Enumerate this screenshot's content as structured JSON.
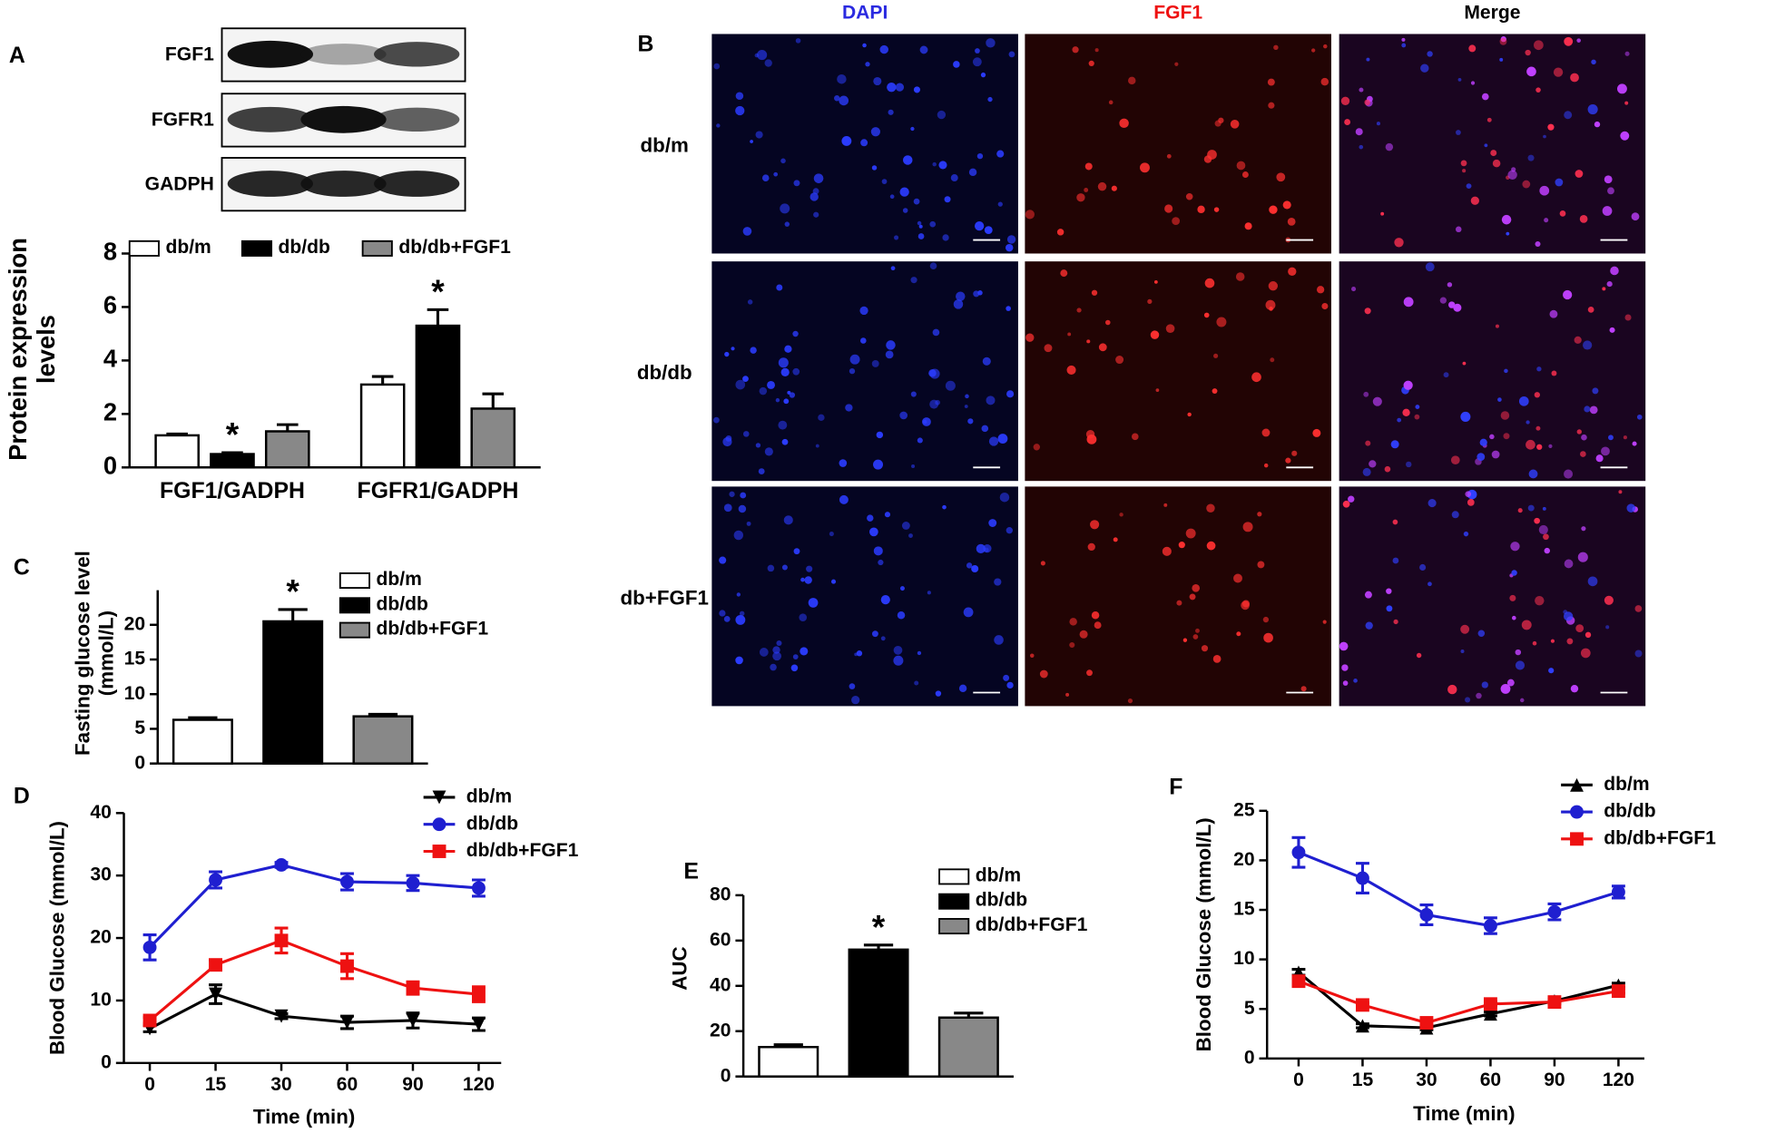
{
  "blot": {
    "panel": "A",
    "labels": [
      "FGF1",
      "FGFR1",
      "GADPH"
    ]
  },
  "micrograph": {
    "panel": "B",
    "columns": [
      "DAPI",
      "FGF1",
      "Merge"
    ],
    "rows": [
      "db/m",
      "db/db",
      "db+FGF1"
    ]
  },
  "chart_data": [
    {
      "type": "bar",
      "panel": "A",
      "ylabel": [
        "Protein expression",
        "levels"
      ],
      "categories": [
        "FGF1/GADPH",
        "FGFR1/GADPH"
      ],
      "series": [
        {
          "name": "db/m",
          "color": "#ffffff",
          "values": [
            1.2,
            3.1
          ],
          "errors": [
            0.05,
            0.3
          ]
        },
        {
          "name": "db/db",
          "color": "#000000",
          "values": [
            0.5,
            5.3
          ],
          "errors": [
            0.05,
            0.6
          ]
        },
        {
          "name": "db/db+FGF1",
          "color": "#888888",
          "values": [
            1.35,
            2.2
          ],
          "errors": [
            0.25,
            0.55
          ]
        }
      ],
      "annotations": [
        {
          "text": "*",
          "series": 1,
          "index": 0
        },
        {
          "text": "*",
          "series": 1,
          "index": 1
        }
      ],
      "ylim": [
        0,
        8
      ],
      "yticks": [
        0,
        2,
        4,
        6,
        8
      ]
    },
    {
      "type": "bar",
      "panel": "C",
      "ylabel": [
        "Fasting glucose level",
        "(mmol/L)"
      ],
      "series": [
        {
          "name": "db/m",
          "color": "#ffffff",
          "values": [
            6.3
          ],
          "errors": [
            0.3
          ]
        },
        {
          "name": "db/db",
          "color": "#000000",
          "values": [
            20.5
          ],
          "errors": [
            1.7
          ]
        },
        {
          "name": "db/db+FGF1",
          "color": "#888888",
          "values": [
            6.8
          ],
          "errors": [
            0.3
          ]
        }
      ],
      "annotations": [
        {
          "text": "*",
          "series": 1,
          "index": 0
        }
      ],
      "ylim": [
        0,
        25
      ],
      "yticks": [
        0,
        5,
        10,
        15,
        20
      ]
    },
    {
      "type": "line",
      "panel": "D",
      "ylabel": [
        "Blood Glucose (mmol/L)"
      ],
      "xlabel": "Time (min)",
      "categories": [
        "0",
        "15",
        "30",
        "60",
        "90",
        "120"
      ],
      "series": [
        {
          "name": "db/m",
          "color": "#000000",
          "marker": "triangle-down",
          "values": [
            5.5,
            11,
            7.5,
            6.5,
            6.8,
            6.2
          ],
          "errors": [
            0.5,
            1.5,
            0.4,
            1,
            1.2,
            1
          ]
        },
        {
          "name": "db/db",
          "color": "#1f1fd0",
          "marker": "circle",
          "values": [
            18.5,
            29.3,
            31.7,
            29,
            28.8,
            28
          ],
          "errors": [
            2,
            1.3,
            0.4,
            1.3,
            1.2,
            1.3
          ]
        },
        {
          "name": "db/db+FGF1",
          "color": "#ee1111",
          "marker": "square",
          "values": [
            6.8,
            15.7,
            19.6,
            15.5,
            12,
            11
          ],
          "errors": [
            0.5,
            0.8,
            2,
            2,
            1,
            1.2
          ]
        }
      ],
      "ylim": [
        0,
        40
      ],
      "yticks": [
        0,
        10,
        20,
        30,
        40
      ]
    },
    {
      "type": "bar",
      "panel": "E",
      "ylabel": [
        "AUC"
      ],
      "series": [
        {
          "name": "db/m",
          "color": "#ffffff",
          "values": [
            13
          ],
          "errors": [
            1
          ]
        },
        {
          "name": "db/db",
          "color": "#000000",
          "values": [
            56
          ],
          "errors": [
            2
          ]
        },
        {
          "name": "db/db+FGF1",
          "color": "#888888",
          "values": [
            26
          ],
          "errors": [
            2
          ]
        }
      ],
      "annotations": [
        {
          "text": "*",
          "series": 1,
          "index": 0
        }
      ],
      "ylim": [
        0,
        80
      ],
      "yticks": [
        0,
        20,
        40,
        60,
        80
      ]
    },
    {
      "type": "line",
      "panel": "F",
      "ylabel": [
        "Blood Glucose (mmol/L)"
      ],
      "xlabel": "Time (min)",
      "categories": [
        "0",
        "15",
        "30",
        "60",
        "90",
        "120"
      ],
      "series": [
        {
          "name": "db/m",
          "color": "#000000",
          "marker": "triangle-up",
          "values": [
            8.7,
            3.3,
            3.1,
            4.5,
            5.8,
            7.4
          ],
          "errors": [
            0.3,
            0.2,
            0.2,
            0.2,
            0.2,
            0.2
          ]
        },
        {
          "name": "db/db",
          "color": "#1f1fd0",
          "marker": "circle",
          "values": [
            20.8,
            18.2,
            14.5,
            13.4,
            14.8,
            16.8
          ],
          "errors": [
            1.5,
            1.5,
            1,
            0.8,
            0.8,
            0.6
          ]
        },
        {
          "name": "db/db+FGF1",
          "color": "#ee1111",
          "marker": "square",
          "values": [
            7.8,
            5.4,
            3.6,
            5.5,
            5.7,
            6.8
          ],
          "errors": [
            0.3,
            0.2,
            0.2,
            0.2,
            0.2,
            0.2
          ]
        }
      ],
      "ylim": [
        0,
        25
      ],
      "yticks": [
        0,
        5,
        10,
        15,
        20,
        25
      ]
    }
  ]
}
